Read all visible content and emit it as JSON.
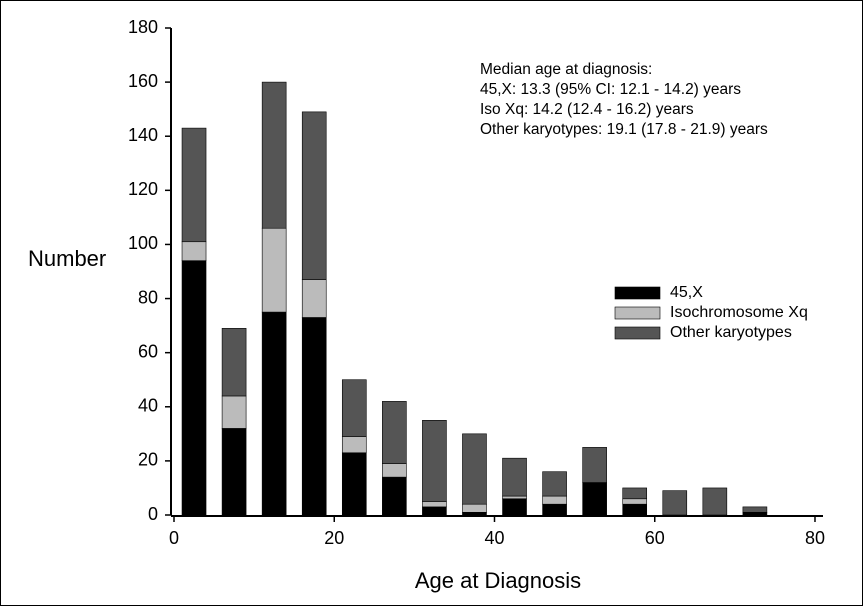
{
  "chart_data": {
    "type": "stacked-bar",
    "annotation": [
      "Median age at diagnosis:",
      "45,X: 13.3 (95% CI: 12.1 - 14.2) years",
      "Iso Xq: 14.2 (12.4 - 16.2) years",
      "Other karyotypes: 19.1 (17.8 - 21.9) years"
    ],
    "x_label": "Age at Diagnosis",
    "y_label": "Number",
    "x": [
      2.5,
      7.5,
      12.5,
      17.5,
      22.5,
      27.5,
      32.5,
      37.5,
      42.5,
      47.5,
      52.5,
      57.5,
      62.5,
      67.5,
      72.5
    ],
    "series": [
      {
        "name": "45,X",
        "color": "#000000",
        "values": [
          94,
          32,
          75,
          73,
          23,
          14,
          3,
          1,
          6,
          4,
          12,
          4,
          0,
          0,
          1
        ]
      },
      {
        "name": "Isochromosome Xq",
        "color": "#bbbbbb",
        "values": [
          7,
          12,
          31,
          14,
          6,
          5,
          2,
          3,
          1,
          3,
          0,
          2,
          0,
          0,
          0
        ]
      },
      {
        "name": "Other karyotypes",
        "color": "#555555",
        "values": [
          42,
          25,
          54,
          62,
          21,
          23,
          30,
          26,
          14,
          9,
          13,
          4,
          9,
          10,
          2
        ]
      }
    ],
    "xlim": [
      0,
      81
    ],
    "ylim": [
      0,
      180
    ],
    "xticks": [
      0,
      20,
      40,
      60,
      80
    ],
    "yticks": [
      0,
      20,
      40,
      60,
      80,
      100,
      120,
      140,
      160,
      180
    ],
    "legend": "right"
  }
}
